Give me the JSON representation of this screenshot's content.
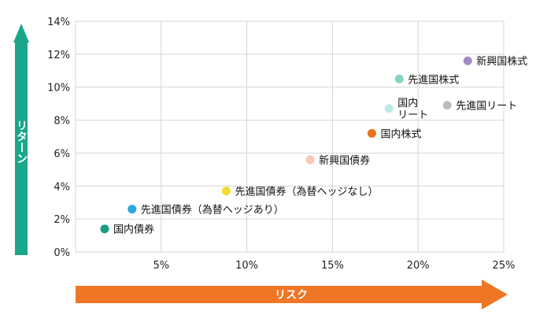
{
  "chart_data": {
    "type": "scatter",
    "xlabel": "リスク",
    "ylabel": "リターン",
    "xlim": [
      0,
      25
    ],
    "ylim": [
      0,
      14
    ],
    "x_ticks": [
      5,
      10,
      15,
      20,
      25
    ],
    "y_ticks": [
      0,
      2,
      4,
      6,
      8,
      10,
      12,
      14
    ],
    "x_tick_labels": [
      "5%",
      "10%",
      "15%",
      "20%",
      "25%"
    ],
    "y_tick_labels": [
      "0%",
      "2%",
      "4%",
      "6%",
      "8%",
      "10%",
      "12%",
      "14%"
    ],
    "grid": true,
    "points": [
      {
        "name": "国内債券",
        "x": 1.7,
        "y": 1.4,
        "color": "#1a9e80"
      },
      {
        "name": "先進国債券（為替ヘッジあり）",
        "x": 3.3,
        "y": 2.6,
        "color": "#2aa6e0"
      },
      {
        "name": "先進国債券（為替ヘッジなし）",
        "x": 8.8,
        "y": 3.7,
        "color": "#f2dc35"
      },
      {
        "name": "新興国債券",
        "x": 13.7,
        "y": 5.6,
        "color": "#f9c7b4"
      },
      {
        "name": "国内株式",
        "x": 17.3,
        "y": 7.2,
        "color": "#e8741e"
      },
      {
        "name": "国内リート",
        "x": 18.3,
        "y": 8.7,
        "color": "#bfe9e6"
      },
      {
        "name": "先進国株式",
        "x": 18.9,
        "y": 10.5,
        "color": "#88d2c6"
      },
      {
        "name": "先進国リート",
        "x": 21.7,
        "y": 8.9,
        "color": "#bdbdbd"
      },
      {
        "name": "新興国株式",
        "x": 22.9,
        "y": 11.6,
        "color": "#a58cbf"
      }
    ]
  },
  "colors": {
    "risk_arrow": "#ee7624",
    "return_arrow": "#1aa68a",
    "grid": "#d6d6d6"
  }
}
